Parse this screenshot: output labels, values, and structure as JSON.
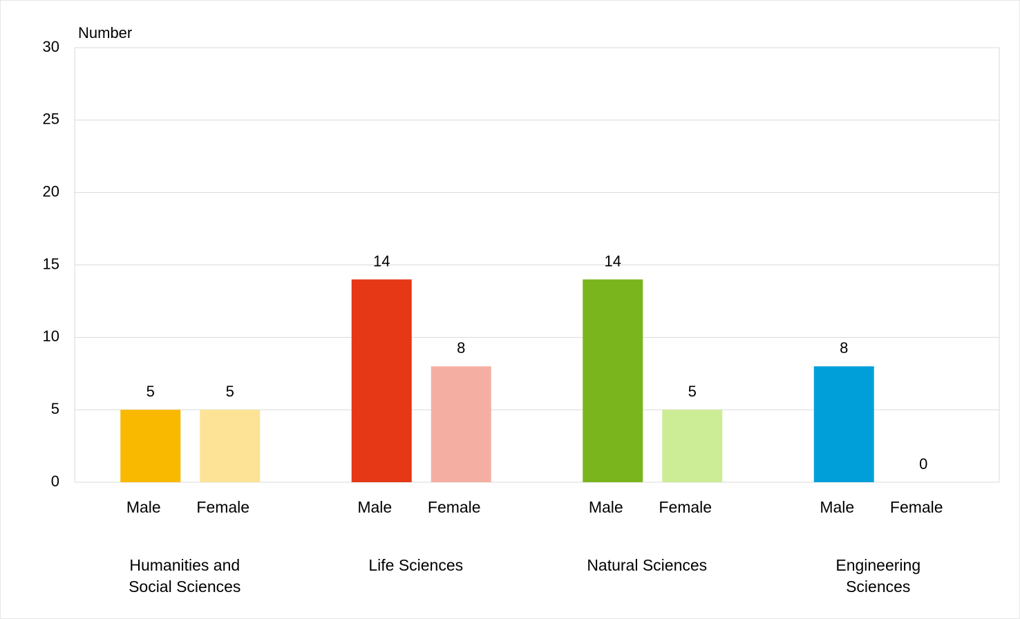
{
  "chart_data": {
    "type": "grouped-bar",
    "y_label": "Number",
    "groups": [
      {
        "name": "Humanities and Social Sciences",
        "categories": [
          "Male",
          "Female"
        ],
        "values": [
          5,
          5
        ],
        "colors": [
          "#f9b900",
          "#fde396"
        ]
      },
      {
        "name": "Life Sciences",
        "categories": [
          "Male",
          "Female"
        ],
        "values": [
          14,
          8
        ],
        "colors": [
          "#e63717",
          "#f5afa2"
        ]
      },
      {
        "name": "Natural Sciences",
        "categories": [
          "Male",
          "Female"
        ],
        "values": [
          14,
          5
        ],
        "colors": [
          "#7ab51d",
          "#cdec96"
        ]
      },
      {
        "name": "Engineering Sciences",
        "categories": [
          "Male",
          "Female"
        ],
        "values": [
          8,
          0
        ],
        "colors": [
          "#009fda",
          "#99d9f0"
        ]
      }
    ],
    "ylim": [
      0,
      30
    ],
    "yticks": [
      0,
      5,
      10,
      15,
      20,
      25,
      30
    ],
    "grid": true
  }
}
